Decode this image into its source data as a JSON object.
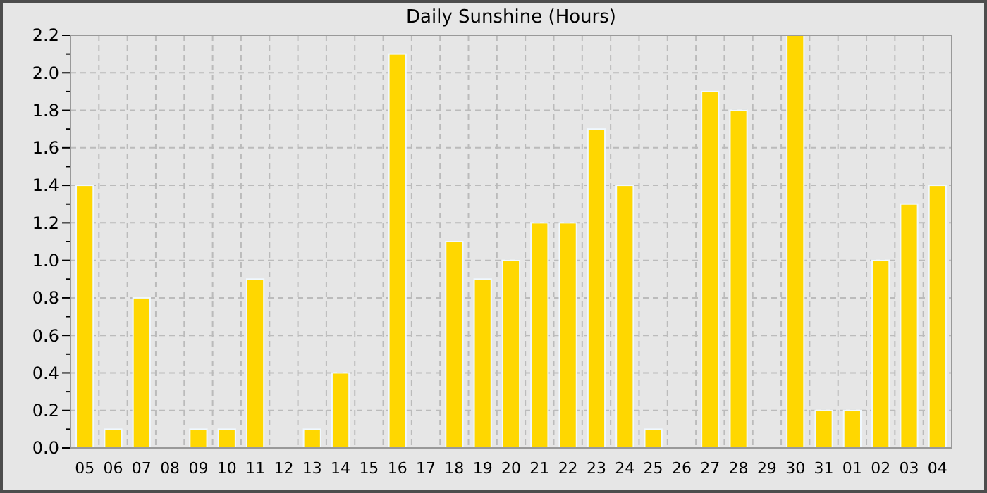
{
  "chart_data": {
    "type": "bar",
    "title": "Daily Sunshine (Hours)",
    "categories": [
      "05",
      "06",
      "07",
      "08",
      "09",
      "10",
      "11",
      "12",
      "13",
      "14",
      "15",
      "16",
      "17",
      "18",
      "19",
      "20",
      "21",
      "22",
      "23",
      "24",
      "25",
      "26",
      "27",
      "28",
      "29",
      "30",
      "31",
      "01",
      "02",
      "03",
      "04"
    ],
    "values": [
      1.4,
      0.1,
      0.8,
      0,
      0.1,
      0.1,
      0.9,
      0,
      0.1,
      0.4,
      0,
      2.1,
      0,
      1.1,
      0.9,
      1.0,
      1.2,
      1.2,
      1.7,
      1.4,
      0.1,
      0,
      1.9,
      1.8,
      0,
      2.2,
      0.2,
      0.2,
      1.0,
      1.3,
      1.4
    ],
    "color": "#ffd700",
    "ylim": [
      0,
      2.2
    ],
    "yticks": [
      {
        "value": 0,
        "label": "0.0"
      },
      {
        "value": 0.1,
        "label": null
      },
      {
        "value": 0.2,
        "label": "0.2"
      },
      {
        "value": 0.3,
        "label": null
      },
      {
        "value": 0.4,
        "label": "0.4"
      },
      {
        "value": 0.5,
        "label": null
      },
      {
        "value": 0.6,
        "label": "0.6"
      },
      {
        "value": 0.7,
        "label": null
      },
      {
        "value": 0.8,
        "label": "0.8"
      },
      {
        "value": 0.9,
        "label": null
      },
      {
        "value": 1,
        "label": "1.0"
      },
      {
        "value": 1.1,
        "label": null
      },
      {
        "value": 1.2,
        "label": "1.2"
      },
      {
        "value": 1.3,
        "label": null
      },
      {
        "value": 1.4,
        "label": "1.4"
      },
      {
        "value": 1.5,
        "label": null
      },
      {
        "value": 1.6,
        "label": "1.6"
      },
      {
        "value": 1.7,
        "label": null
      },
      {
        "value": 1.8,
        "label": "1.8"
      },
      {
        "value": 1.9,
        "label": null
      },
      {
        "value": 2,
        "label": "2.0"
      },
      {
        "value": 2.1,
        "label": null
      },
      {
        "value": 2.2,
        "label": "2.2"
      }
    ],
    "grid": true
  }
}
